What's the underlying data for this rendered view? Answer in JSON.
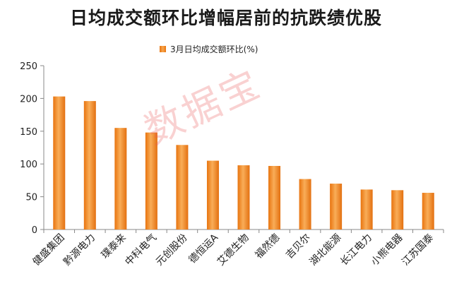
{
  "title": "日均成交额环比增幅居前的抗跌绩优股",
  "watermark": "数据宝",
  "colors": {
    "bar_dark": "#e8740f",
    "bar_light": "#f7a64e",
    "axis": "#888888",
    "grid": "#d9d9d9"
  },
  "chart_data": {
    "type": "bar",
    "title": "日均成交额环比增幅居前的抗跌绩优股",
    "categories": [
      "健盛集团",
      "黔源电力",
      "璞泰来",
      "中科电气",
      "元创股份",
      "德恒运A",
      "艾德生物",
      "福然德",
      "吉贝尔",
      "湖北能源",
      "长江电力",
      "小熊电器",
      "江苏国泰"
    ],
    "series": [
      {
        "name": "3月日均成交额环比(%)",
        "values": [
          203,
          196,
          155,
          148,
          129,
          105,
          98,
          97,
          77,
          70,
          61,
          60,
          56
        ]
      }
    ],
    "yticks": [
      0,
      50,
      100,
      150,
      200,
      250
    ],
    "ylim": [
      0,
      250
    ],
    "grid": false,
    "legend": "top"
  }
}
